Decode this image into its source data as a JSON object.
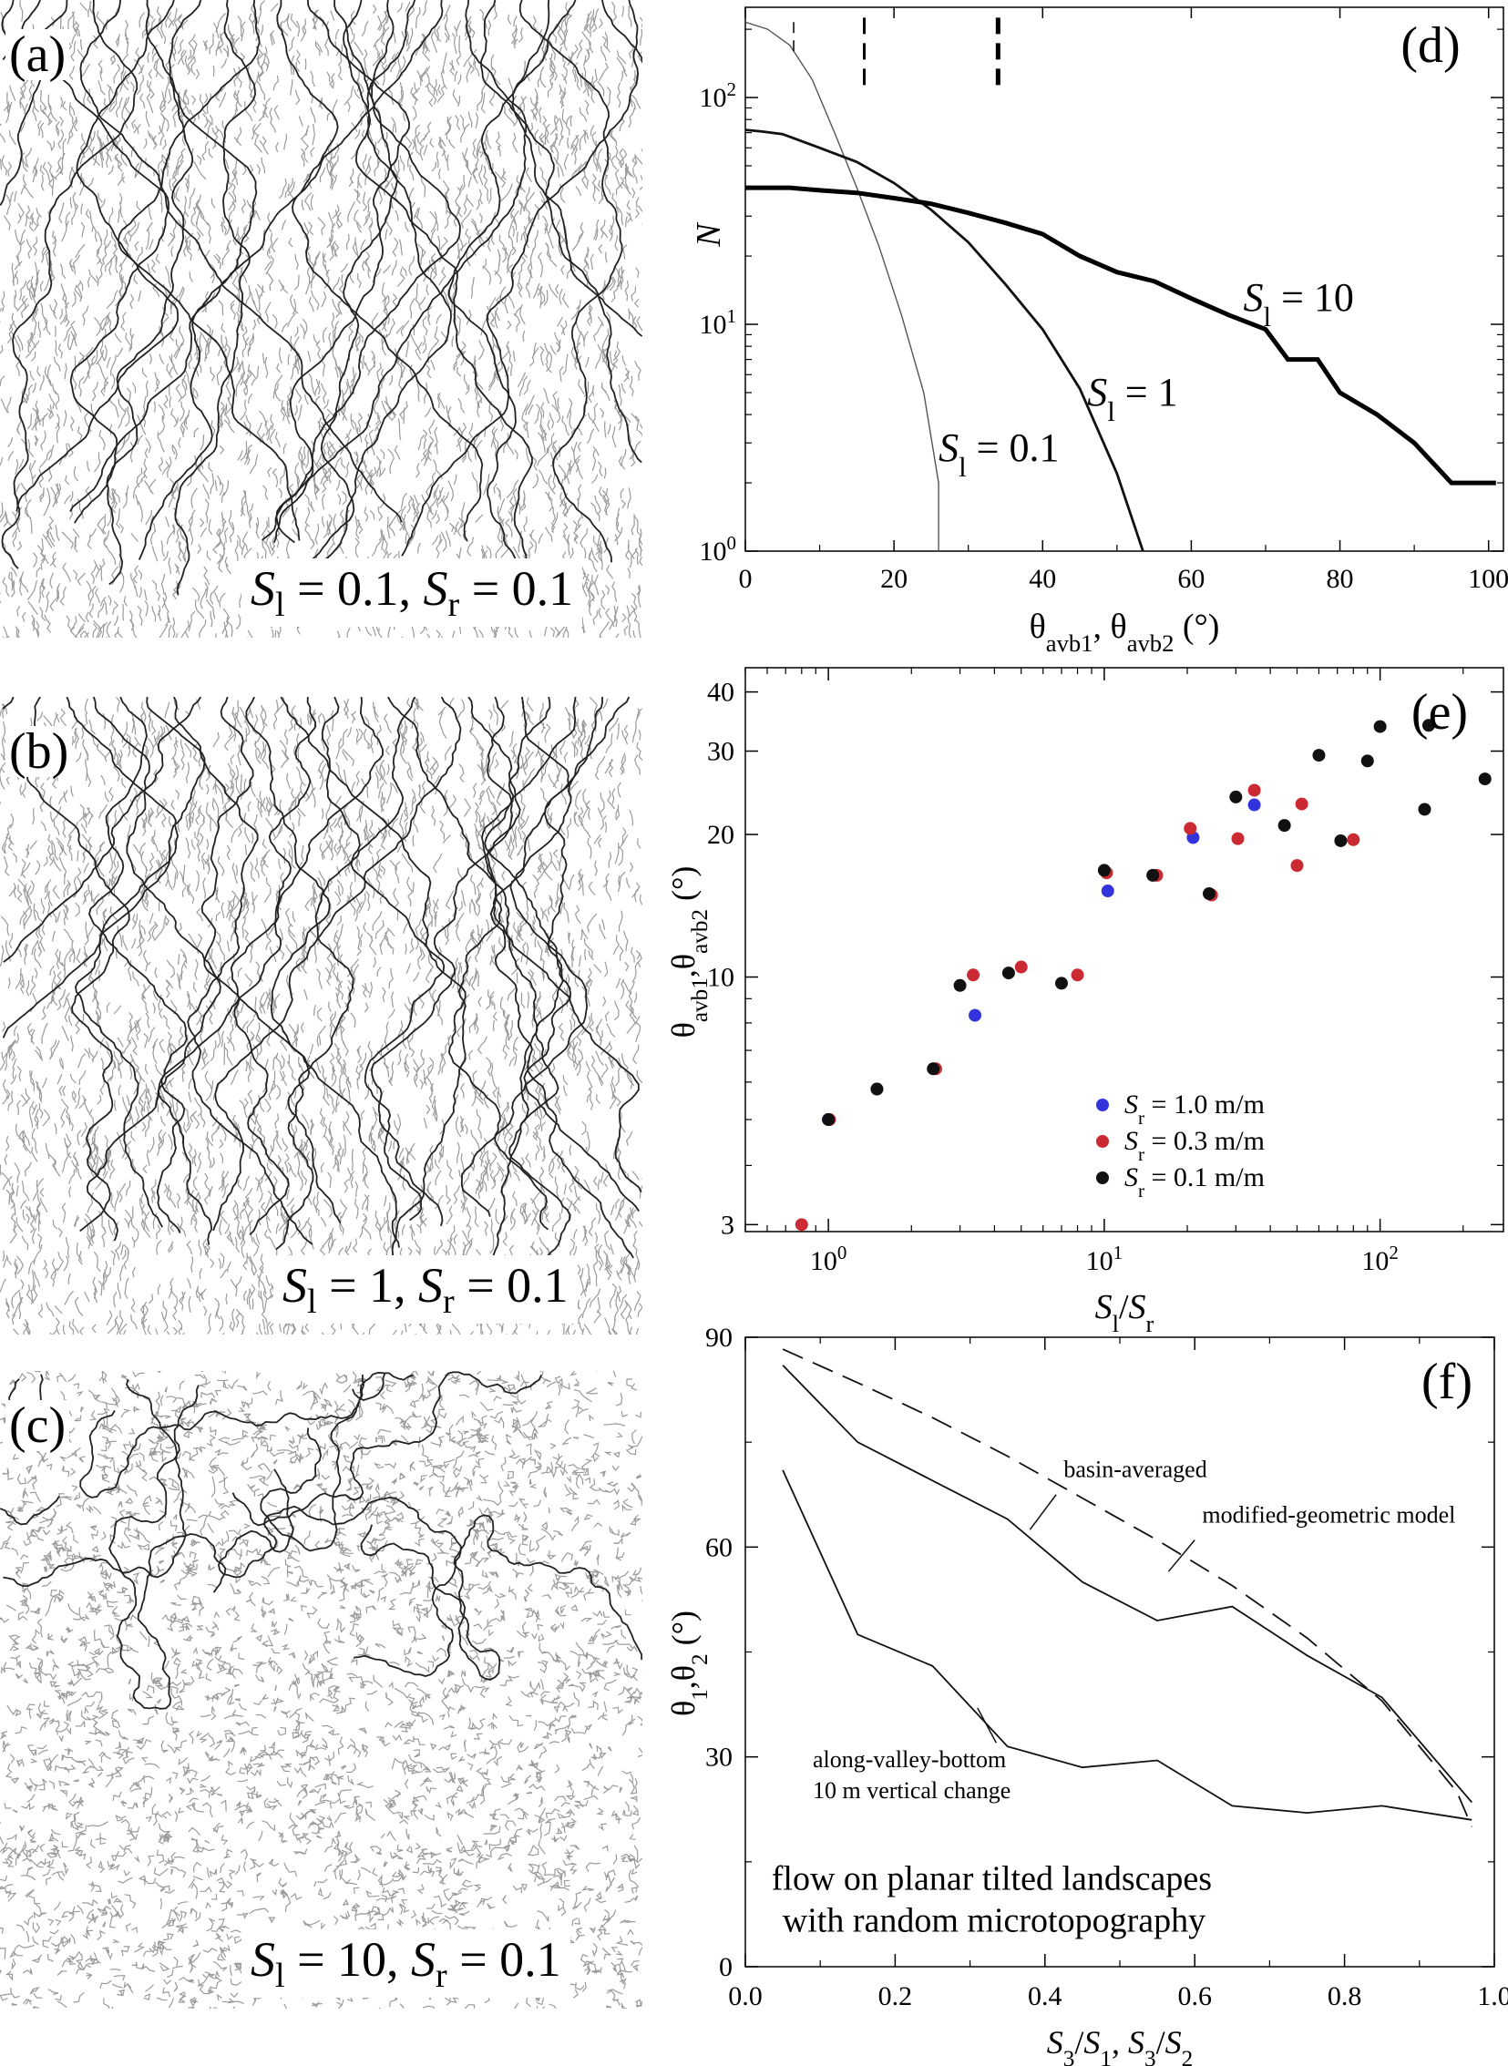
{
  "maps": [
    {
      "label": "(a)",
      "caption_parts": [
        "S",
        "l",
        " = 0.1, ",
        "S",
        "r",
        " = 0.1"
      ]
    },
    {
      "label": "(b)",
      "caption_parts": [
        "S",
        "l",
        " = 1, ",
        "S",
        "r",
        " = 0.1"
      ]
    },
    {
      "label": "(c)",
      "caption_parts": [
        "S",
        "l",
        " = 10, ",
        "S",
        "r",
        " = 0.1"
      ]
    }
  ],
  "chart_data": [
    {
      "panel": "(d)",
      "type": "line",
      "xlabel": "θavb1, θavb2 (°)",
      "ylabel": "N",
      "xlim": [
        0,
        102
      ],
      "ylim": [
        1,
        250
      ],
      "yscale": "log",
      "xticks": [
        0,
        20,
        40,
        60,
        80,
        100
      ],
      "yticks": [
        {
          "v": 1,
          "label": "10",
          "exp": "0"
        },
        {
          "v": 10,
          "label": "10",
          "exp": "1"
        },
        {
          "v": 100,
          "label": "10",
          "exp": "2"
        }
      ],
      "series": [
        {
          "name": "S_l = 0.1",
          "x": [
            0,
            3,
            6,
            9,
            12,
            15,
            18,
            21,
            24,
            26,
            26
          ],
          "y": [
            215,
            200,
            170,
            120,
            70,
            40,
            22,
            11,
            5,
            2,
            0.5
          ]
        },
        {
          "name": "S_l = 1",
          "x": [
            0,
            2,
            5,
            10,
            15,
            20,
            25,
            30,
            35,
            40,
            45,
            50,
            53.5,
            54
          ],
          "y": [
            72,
            71,
            69,
            60,
            52,
            42,
            32,
            23,
            15,
            9.5,
            5.2,
            2.2,
            1,
            0.5
          ]
        },
        {
          "name": "S_l = 10",
          "x": [
            0,
            3,
            6,
            10,
            15,
            20,
            25,
            30,
            35,
            40,
            45,
            50,
            55,
            60,
            65,
            70,
            73,
            77,
            80,
            85,
            90,
            95,
            98,
            101
          ],
          "y": [
            40,
            40,
            40,
            39,
            38,
            36,
            34,
            31,
            28,
            25,
            20,
            17,
            15.5,
            13,
            11,
            9.5,
            7,
            7,
            5,
            4,
            3,
            2,
            2,
            2
          ]
        }
      ],
      "vlines": [
        {
          "x": 6.5,
          "ytop": 215,
          "ybot": 150,
          "style": "thin"
        },
        {
          "x": 16,
          "ytop": 225,
          "ybot": 105,
          "style": "medium"
        },
        {
          "x": 34,
          "ytop": 225,
          "ybot": 105,
          "style": "thick"
        }
      ],
      "annotations": [
        {
          "parts": [
            "S",
            "l",
            " = 0.1"
          ],
          "x": 26,
          "y": 2.5
        },
        {
          "parts": [
            "S",
            "l",
            " = 1"
          ],
          "x": 46,
          "y": 4.4
        },
        {
          "parts": [
            "S",
            "l",
            " = 10"
          ],
          "x": 67,
          "y": 11.5
        }
      ]
    },
    {
      "panel": "(e)",
      "type": "scatter",
      "xlabel": "Sl/Sr",
      "ylabel": "θavb1,θavb2 (°)",
      "xscale": "log",
      "yscale": "log",
      "xlim": [
        0.5,
        280
      ],
      "ylim": [
        2.9,
        45
      ],
      "xticks": [
        {
          "v": 1,
          "label": "10",
          "exp": "0"
        },
        {
          "v": 10,
          "label": "10",
          "exp": "1"
        },
        {
          "v": 100,
          "label": "10",
          "exp": "2"
        }
      ],
      "yticks": [
        3,
        10,
        20,
        30,
        40
      ],
      "legend": "bottom-right",
      "series": [
        {
          "name": "Sr = 1.0 m/m",
          "color": "#3333dd",
          "points": [
            [
              1,
              5
            ],
            [
              3.4,
              8.3
            ],
            [
              10.3,
              15.2
            ],
            [
              21,
              19.7
            ],
            [
              35,
              23.1
            ]
          ]
        },
        {
          "name": "Sr = 0.3 m/m",
          "color": "#cc2a33",
          "points": [
            [
              0.8,
              3
            ],
            [
              1.01,
              5
            ],
            [
              1.5,
              5.8
            ],
            [
              2.45,
              6.4
            ],
            [
              3.35,
              10.1
            ],
            [
              5,
              10.5
            ],
            [
              8,
              10.1
            ],
            [
              10.2,
              16.6
            ],
            [
              15.5,
              16.4
            ],
            [
              24.5,
              14.9
            ],
            [
              20.5,
              20.6
            ],
            [
              30.5,
              19.6
            ],
            [
              35,
              24.8
            ],
            [
              50,
              17.2
            ],
            [
              52,
              23.2
            ],
            [
              80,
              19.5
            ]
          ]
        },
        {
          "name": "Sr = 0.1 m/m",
          "color": "#111111",
          "points": [
            [
              1,
              5
            ],
            [
              1.5,
              5.8
            ],
            [
              2.4,
              6.4
            ],
            [
              3,
              9.6
            ],
            [
              4.5,
              10.2
            ],
            [
              7,
              9.7
            ],
            [
              10,
              16.8
            ],
            [
              15,
              16.4
            ],
            [
              24,
              15
            ],
            [
              30,
              24
            ],
            [
              45,
              20.9
            ],
            [
              60,
              29.4
            ],
            [
              72,
              19.4
            ],
            [
              90,
              28.6
            ],
            [
              100,
              33.8
            ],
            [
              145,
              22.6
            ],
            [
              150,
              34
            ],
            [
              240,
              26.2
            ]
          ]
        }
      ]
    },
    {
      "panel": "(f)",
      "type": "line",
      "xlabel": "S3/S1, S3/S2",
      "ylabel": "θ1,θ2 (°)",
      "xlim": [
        0,
        1
      ],
      "ylim": [
        0,
        90
      ],
      "xticks": [
        0.0,
        0.2,
        0.4,
        0.6,
        0.8,
        1.0
      ],
      "yticks": [
        0,
        30,
        60,
        90
      ],
      "series": [
        {
          "name": "modified-geometric model",
          "style": "dashed",
          "x": [
            0.05,
            0.15,
            0.25,
            0.35,
            0.45,
            0.55,
            0.65,
            0.75,
            0.85,
            0.95,
            0.97
          ],
          "y": [
            88.3,
            83.5,
            78.5,
            73,
            67,
            61,
            54.5,
            47,
            38,
            25,
            20
          ]
        },
        {
          "name": "basin-averaged",
          "style": "solid",
          "x": [
            0.05,
            0.15,
            0.25,
            0.35,
            0.45,
            0.55,
            0.65,
            0.75,
            0.85,
            0.97
          ],
          "y": [
            86,
            75,
            69.5,
            64,
            55,
            49.5,
            51.5,
            44.5,
            38.5,
            23.5
          ]
        },
        {
          "name": "along-valley-bottom 10 m vertical change",
          "style": "solid",
          "x": [
            0.05,
            0.15,
            0.25,
            0.35,
            0.45,
            0.55,
            0.65,
            0.75,
            0.85,
            0.97
          ],
          "y": [
            71,
            47.5,
            43,
            31.5,
            28.5,
            29.5,
            23,
            22,
            23,
            21
          ]
        }
      ],
      "labels": [
        {
          "text": "basin-averaged",
          "x": 0.425,
          "y": 70
        },
        {
          "text": "modified-geometric model",
          "x": 0.61,
          "y": 63.5
        },
        {
          "lines": [
            "along-valley-bottom",
            "10 m vertical change"
          ],
          "x": 0.09,
          "y": 28.5
        },
        {
          "lines": [
            "flow on planar tilted landscapes",
            "with random microtopography"
          ],
          "x": 0.035,
          "y": 11
        }
      ]
    }
  ]
}
